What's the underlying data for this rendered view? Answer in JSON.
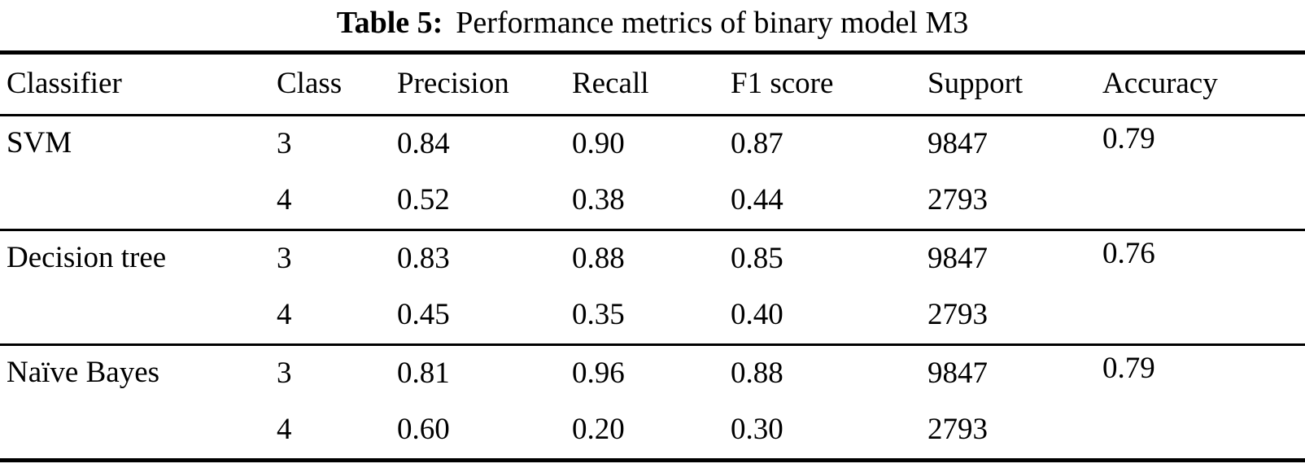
{
  "title": {
    "label": "Table 5:",
    "text": "Performance metrics of binary model M3"
  },
  "colors": {
    "text": "#000000",
    "background": "#ffffff",
    "rule": "#000000"
  },
  "table": {
    "columns": [
      "Classifier",
      "Class",
      "Precision",
      "Recall",
      "F1 score",
      "Support",
      "Accuracy"
    ],
    "groups": [
      {
        "classifier": "SVM",
        "accuracy": "0.79",
        "rows": [
          {
            "class": "3",
            "precision": "0.84",
            "recall": "0.90",
            "f1": "0.87",
            "support": "9847"
          },
          {
            "class": "4",
            "precision": "0.52",
            "recall": "0.38",
            "f1": "0.44",
            "support": "2793"
          }
        ]
      },
      {
        "classifier": "Decision tree",
        "accuracy": "0.76",
        "rows": [
          {
            "class": "3",
            "precision": "0.83",
            "recall": "0.88",
            "f1": "0.85",
            "support": "9847"
          },
          {
            "class": "4",
            "precision": "0.45",
            "recall": "0.35",
            "f1": "0.40",
            "support": "2793"
          }
        ]
      },
      {
        "classifier": "Naïve Bayes",
        "accuracy": "0.79",
        "rows": [
          {
            "class": "3",
            "precision": "0.81",
            "recall": "0.96",
            "f1": "0.88",
            "support": "9847"
          },
          {
            "class": "4",
            "precision": "0.60",
            "recall": "0.20",
            "f1": "0.30",
            "support": "2793"
          }
        ]
      }
    ]
  },
  "chart_data": {
    "type": "table",
    "title": "Table 5: Performance metrics of binary model M3",
    "columns": [
      "Classifier",
      "Class",
      "Precision",
      "Recall",
      "F1 score",
      "Support",
      "Accuracy"
    ],
    "rows": [
      [
        "SVM",
        "3",
        "0.84",
        "0.90",
        "0.87",
        "9847",
        "0.79"
      ],
      [
        "",
        "4",
        "0.52",
        "0.38",
        "0.44",
        "2793",
        ""
      ],
      [
        "Decision tree",
        "3",
        "0.83",
        "0.88",
        "0.85",
        "9847",
        "0.76"
      ],
      [
        "",
        "4",
        "0.45",
        "0.35",
        "0.40",
        "2793",
        ""
      ],
      [
        "Naïve Bayes",
        "3",
        "0.81",
        "0.96",
        "0.88",
        "9847",
        "0.79"
      ],
      [
        "",
        "4",
        "0.60",
        "0.20",
        "0.30",
        "2793",
        ""
      ]
    ]
  }
}
